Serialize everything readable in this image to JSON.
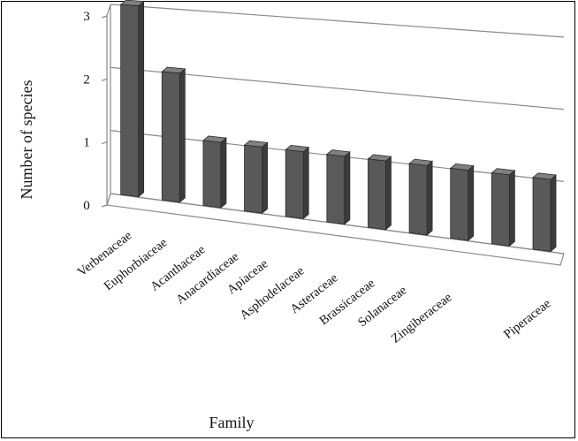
{
  "chart_data": {
    "type": "bar",
    "style": "3d-perspective",
    "categories": [
      "Verbenaceae",
      "Euphorbiaceae",
      "Acanthaceae",
      "Anacardiaceae",
      "Apiaceae",
      "Asphodelaceae",
      "Asteraceae",
      "Brassicaceae",
      "Solanaceae",
      "Zingiberaceae",
      "Piperaceae"
    ],
    "values": [
      3,
      2,
      1,
      1,
      1,
      1,
      1,
      1,
      1,
      1,
      1
    ],
    "xlabel": "Family",
    "ylabel": "Number of species",
    "ylim": [
      0,
      3
    ],
    "yticks": [
      "0",
      "1",
      "2",
      "3"
    ],
    "grid": true,
    "legend": "none",
    "bar_color": "#595959"
  }
}
